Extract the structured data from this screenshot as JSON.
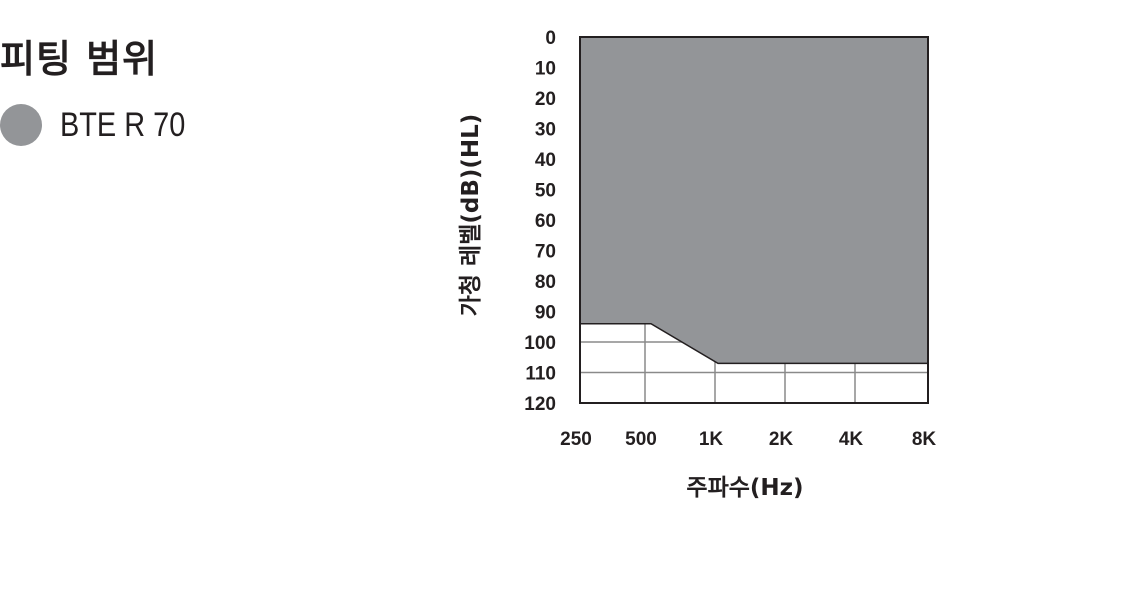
{
  "legend_title": "피팅 범위",
  "legend_item": {
    "label": "BTE R 70",
    "color": "#939598"
  },
  "chart_data": {
    "type": "area",
    "title": "",
    "xlabel": "주파수(Hz)",
    "ylabel": "가청 레벨(dB)(HL)",
    "categories": [
      "250",
      "500",
      "1K",
      "2K",
      "4K",
      "8K"
    ],
    "series": [
      {
        "name": "BTE R 70",
        "values": [
          94,
          94,
          107,
          107,
          107,
          107
        ],
        "fill": "from 0 to value"
      }
    ],
    "y_ticks": [
      "0",
      "10",
      "20",
      "30",
      "40",
      "50",
      "60",
      "70",
      "80",
      "90",
      "100",
      "110",
      "120"
    ],
    "ylim": [
      0,
      120
    ],
    "y_inverted": true,
    "grid": true,
    "fill_color": "#939598"
  }
}
